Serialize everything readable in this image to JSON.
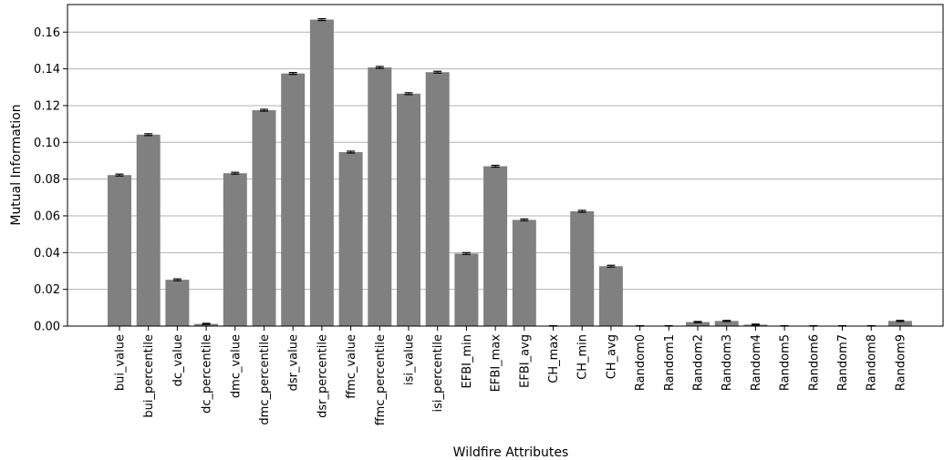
{
  "chart_data": {
    "type": "bar",
    "xlabel": "Wildfire Attributes",
    "ylabel": "Mutual Information",
    "ylim": [
      0,
      0.175
    ],
    "yticks": [
      "0.00",
      "0.02",
      "0.04",
      "0.06",
      "0.08",
      "0.10",
      "0.12",
      "0.14",
      "0.16"
    ],
    "grid": "horizontal",
    "bar_color": "#808080",
    "error_color": "#000000",
    "categories": [
      "bui_value",
      "bui_percentile",
      "dc_value",
      "dc_percentile",
      "dmc_value",
      "dmc_percentile",
      "dsr_value",
      "dsr_percentile",
      "ffmc_value",
      "ffmc_percentile",
      "isi_value",
      "isi_percentile",
      "EFBI_min",
      "EFBI_max",
      "EFBI_avg",
      "CH_max",
      "CH_min",
      "CH_avg",
      "Random0",
      "Random1",
      "Random2",
      "Random3",
      "Random4",
      "Random5",
      "Random6",
      "Random7",
      "Random8",
      "Random9"
    ],
    "values": [
      0.0822,
      0.1042,
      0.0252,
      0.0012,
      0.0832,
      0.1175,
      0.1375,
      0.1668,
      0.0947,
      0.1408,
      0.1265,
      0.1382,
      0.0395,
      0.087,
      0.0578,
      0.0,
      0.0625,
      0.0326,
      0.0,
      0.0,
      0.0022,
      0.0028,
      0.0008,
      0.0,
      0.0,
      0.0,
      0.0,
      0.0028
    ],
    "errors": [
      0.0005,
      0.0005,
      0.0005,
      0.0003,
      0.0005,
      0.0005,
      0.0005,
      0.0005,
      0.0005,
      0.0005,
      0.0005,
      0.0005,
      0.0005,
      0.0005,
      0.0005,
      0.0002,
      0.0005,
      0.0005,
      0.0002,
      0.0002,
      0.0003,
      0.0003,
      0.0003,
      0.0002,
      0.0002,
      0.0002,
      0.0002,
      0.0003
    ]
  }
}
